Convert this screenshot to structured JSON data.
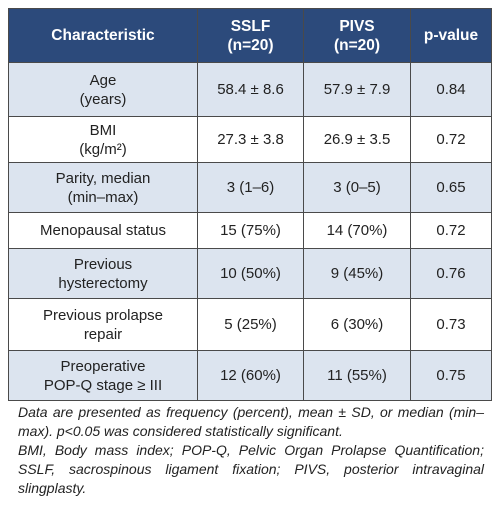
{
  "table": {
    "header": [
      [
        "Characteristic"
      ],
      [
        "SSLF",
        "(n=20)"
      ],
      [
        "PIVS",
        "(n=20)"
      ],
      [
        "p-value"
      ]
    ],
    "rows": [
      [
        [
          "Age",
          "(years)"
        ],
        [
          "58.4 ± 8.6"
        ],
        [
          "57.9 ± 7.9"
        ],
        [
          "0.84"
        ]
      ],
      [
        [
          "BMI",
          "(kg/m²)"
        ],
        [
          "27.3 ± 3.8"
        ],
        [
          "26.9 ± 3.5"
        ],
        [
          "0.72"
        ]
      ],
      [
        [
          "Parity, median",
          "(min–max)"
        ],
        [
          "3 (1–6)"
        ],
        [
          "3 (0–5)"
        ],
        [
          "0.65"
        ]
      ],
      [
        [
          "Menopausal status"
        ],
        [
          "15 (75%)"
        ],
        [
          "14 (70%)"
        ],
        [
          "0.72"
        ]
      ],
      [
        [
          "Previous",
          "hysterectomy"
        ],
        [
          "10 (50%)"
        ],
        [
          "9 (45%)"
        ],
        [
          "0.76"
        ]
      ],
      [
        [
          "Previous prolapse",
          "repair"
        ],
        [
          "5 (25%)"
        ],
        [
          "6 (30%)"
        ],
        [
          "0.73"
        ]
      ],
      [
        [
          "Preoperative",
          "POP-Q stage ≥ III"
        ],
        [
          "12 (60%)"
        ],
        [
          "11 (55%)"
        ],
        [
          "0.75"
        ]
      ]
    ]
  },
  "footnote": [
    "Data are presented as frequency (percent), mean ± SD, or median (min–max). p<0.05 was considered statistically significant.",
    "BMI, Body mass index; POP-Q, Pelvic Organ Prolapse Quantification; SSLF, sacrospinous ligament fixation; PIVS, posterior intravaginal slingplasty."
  ]
}
